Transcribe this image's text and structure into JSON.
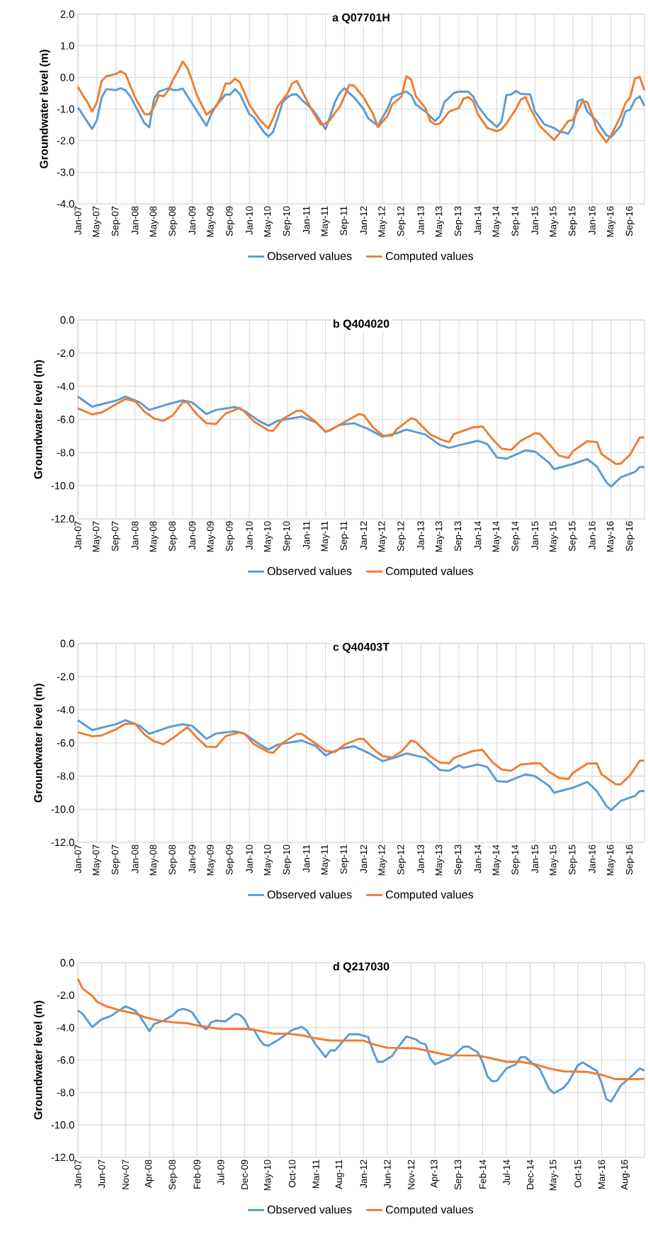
{
  "chart_data": [
    {
      "type": "line",
      "title": "a Q07701H",
      "ylabel": "Groundwater level (m)",
      "grid": true,
      "legend": "bottom",
      "xlim": [
        "2007-01",
        "2016-12"
      ],
      "xticks": [
        {
          "value": "2007-01",
          "label": "Jan-07"
        },
        {
          "value": "2007-05",
          "label": "May-07"
        },
        {
          "value": "2007-09",
          "label": "Sep-07"
        },
        {
          "value": "2008-01",
          "label": "Jan-08"
        },
        {
          "value": "2008-05",
          "label": "May-08"
        },
        {
          "value": "2008-09",
          "label": "Sep-08"
        },
        {
          "value": "2009-01",
          "label": "Jan-09"
        },
        {
          "value": "2009-05",
          "label": "May-09"
        },
        {
          "value": "2009-09",
          "label": "Sep-09"
        },
        {
          "value": "2010-01",
          "label": "Jan-10"
        },
        {
          "value": "2010-05",
          "label": "May-10"
        },
        {
          "value": "2010-09",
          "label": "Sep-10"
        },
        {
          "value": "2011-01",
          "label": "Jan-11"
        },
        {
          "value": "2011-05",
          "label": "May-11"
        },
        {
          "value": "2011-09",
          "label": "Sep-11"
        },
        {
          "value": "2012-01",
          "label": "Jan-12"
        },
        {
          "value": "2012-05",
          "label": "May-12"
        },
        {
          "value": "2012-09",
          "label": "Sep-12"
        },
        {
          "value": "2013-01",
          "label": "Jan-13"
        },
        {
          "value": "2013-05",
          "label": "May-13"
        },
        {
          "value": "2013-09",
          "label": "Sep-13"
        },
        {
          "value": "2014-01",
          "label": "Jan-14"
        },
        {
          "value": "2014-05",
          "label": "May-14"
        },
        {
          "value": "2014-09",
          "label": "Sep-14"
        },
        {
          "value": "2015-01",
          "label": "Jan-15"
        },
        {
          "value": "2015-05",
          "label": "May-15"
        },
        {
          "value": "2015-09",
          "label": "Sep-15"
        },
        {
          "value": "2016-01",
          "label": "Jan-16"
        },
        {
          "value": "2016-05",
          "label": "May-16"
        },
        {
          "value": "2016-09",
          "label": "Sep-16"
        }
      ],
      "ylim": [
        -4,
        2
      ],
      "yticks": [
        {
          "value": 2,
          "label": "2.0"
        },
        {
          "value": 1,
          "label": "1.0"
        },
        {
          "value": 0,
          "label": "0.0"
        },
        {
          "value": -1,
          "label": "-1.0"
        },
        {
          "value": -2,
          "label": "-2.0"
        },
        {
          "value": -3,
          "label": "-3.0"
        },
        {
          "value": -4,
          "label": "-4.0"
        }
      ],
      "series": [
        {
          "name": "Observed values",
          "color": "#5b9bd5",
          "x": [
            "2007-01",
            "2007-04",
            "2007-05",
            "2007-06",
            "2007-07",
            "2007-09",
            "2007-10",
            "2007-11",
            "2007-12",
            "2008-03",
            "2008-04",
            "2008-05",
            "2008-06",
            "2008-08",
            "2008-09",
            "2008-10",
            "2008-11",
            "2009-04",
            "2009-05",
            "2009-06",
            "2009-08",
            "2009-09",
            "2009-10",
            "2009-11",
            "2010-01",
            "2010-02",
            "2010-04",
            "2010-05",
            "2010-06",
            "2010-07",
            "2010-08",
            "2010-09",
            "2010-10",
            "2010-11",
            "2010-12",
            "2011-02",
            "2011-03",
            "2011-05",
            "2011-06",
            "2011-07",
            "2011-08",
            "2011-09",
            "2011-10",
            "2011-11",
            "2012-01",
            "2012-02",
            "2012-04",
            "2012-06",
            "2012-07",
            "2012-08",
            "2012-10",
            "2012-11",
            "2012-12",
            "2013-02",
            "2013-04",
            "2013-05",
            "2013-06",
            "2013-08",
            "2013-09",
            "2013-11",
            "2013-12",
            "2014-01",
            "2014-03",
            "2014-05",
            "2014-06",
            "2014-07",
            "2014-08",
            "2014-09",
            "2014-10",
            "2014-12",
            "2015-01",
            "2015-03",
            "2015-05",
            "2015-06",
            "2015-08",
            "2015-09",
            "2015-10",
            "2015-11",
            "2015-12",
            "2016-02",
            "2016-04",
            "2016-05",
            "2016-07",
            "2016-08",
            "2016-09",
            "2016-10",
            "2016-11",
            "2016-12"
          ],
          "values": [
            -0.95,
            -1.63,
            -1.35,
            -0.63,
            -0.37,
            -0.4,
            -0.34,
            -0.41,
            -0.6,
            -1.45,
            -1.58,
            -0.67,
            -0.45,
            -0.34,
            -0.4,
            -0.4,
            -0.35,
            -1.53,
            -1.16,
            -0.9,
            -0.54,
            -0.54,
            -0.37,
            -0.52,
            -1.16,
            -1.27,
            -1.72,
            -1.87,
            -1.72,
            -1.27,
            -0.78,
            -0.63,
            -0.54,
            -0.54,
            -0.71,
            -0.97,
            -1.16,
            -1.64,
            -1.23,
            -0.78,
            -0.49,
            -0.34,
            -0.5,
            -0.63,
            -1.0,
            -1.3,
            -1.53,
            -1.0,
            -0.63,
            -0.56,
            -0.45,
            -0.56,
            -0.86,
            -1.08,
            -1.38,
            -1.23,
            -0.78,
            -0.49,
            -0.45,
            -0.45,
            -0.6,
            -0.9,
            -1.3,
            -1.57,
            -1.38,
            -0.56,
            -0.54,
            -0.43,
            -0.52,
            -0.54,
            -1.08,
            -1.49,
            -1.6,
            -1.7,
            -1.78,
            -1.53,
            -0.75,
            -0.69,
            -1.08,
            -1.38,
            -1.83,
            -1.89,
            -1.53,
            -1.08,
            -1.02,
            -0.71,
            -0.6,
            -0.9
          ]
        },
        {
          "name": "Computed values",
          "color": "#ed7d31",
          "x": [
            "2007-01",
            "2007-02",
            "2007-03",
            "2007-04",
            "2007-05",
            "2007-06",
            "2007-07",
            "2007-08",
            "2007-09",
            "2007-10",
            "2007-11",
            "2008-01",
            "2008-03",
            "2008-04",
            "2008-05",
            "2008-06",
            "2008-07",
            "2008-08",
            "2008-09",
            "2008-10",
            "2008-11",
            "2008-12",
            "2009-01",
            "2009-02",
            "2009-04",
            "2009-06",
            "2009-07",
            "2009-08",
            "2009-09",
            "2009-10",
            "2009-11",
            "2009-12",
            "2010-01",
            "2010-03",
            "2010-05",
            "2010-06",
            "2010-07",
            "2010-09",
            "2010-10",
            "2010-11",
            "2010-12",
            "2011-02",
            "2011-04",
            "2011-05",
            "2011-06",
            "2011-07",
            "2011-08",
            "2011-09",
            "2011-10",
            "2011-11",
            "2012-01",
            "2012-03",
            "2012-04",
            "2012-06",
            "2012-07",
            "2012-09",
            "2012-10",
            "2012-11",
            "2012-12",
            "2013-02",
            "2013-03",
            "2013-04",
            "2013-05",
            "2013-07",
            "2013-09",
            "2013-10",
            "2013-11",
            "2013-12",
            "2014-01",
            "2014-03",
            "2014-05",
            "2014-06",
            "2014-07",
            "2014-09",
            "2014-10",
            "2014-11",
            "2014-12",
            "2015-02",
            "2015-04",
            "2015-05",
            "2015-06",
            "2015-08",
            "2015-09",
            "2015-11",
            "2015-12",
            "2016-01",
            "2016-02",
            "2016-04",
            "2016-05",
            "2016-07",
            "2016-08",
            "2016-09",
            "2016-10",
            "2016-11",
            "2016-12"
          ],
          "values": [
            -0.3,
            -0.56,
            -0.78,
            -1.08,
            -0.78,
            -0.11,
            0.04,
            0.07,
            0.11,
            0.2,
            0.11,
            -0.63,
            -1.16,
            -1.17,
            -0.93,
            -0.56,
            -0.6,
            -0.41,
            -0.07,
            0.19,
            0.5,
            0.3,
            -0.11,
            -0.56,
            -1.18,
            -0.93,
            -0.63,
            -0.2,
            -0.19,
            -0.04,
            -0.15,
            -0.49,
            -0.86,
            -1.3,
            -1.62,
            -1.3,
            -0.9,
            -0.52,
            -0.19,
            -0.11,
            -0.41,
            -1.0,
            -1.49,
            -1.46,
            -1.34,
            -1.12,
            -0.93,
            -0.6,
            -0.24,
            -0.26,
            -0.63,
            -1.16,
            -1.57,
            -1.23,
            -0.86,
            -0.6,
            0.04,
            -0.07,
            -0.6,
            -0.97,
            -1.38,
            -1.49,
            -1.46,
            -1.08,
            -0.97,
            -0.67,
            -0.62,
            -0.75,
            -1.16,
            -1.6,
            -1.7,
            -1.64,
            -1.46,
            -1.0,
            -0.71,
            -0.62,
            -0.97,
            -1.53,
            -1.83,
            -1.98,
            -1.79,
            -1.38,
            -1.34,
            -0.75,
            -0.78,
            -1.16,
            -1.64,
            -2.05,
            -1.83,
            -1.23,
            -0.82,
            -0.63,
            -0.04,
            0.02,
            -0.41
          ]
        }
      ]
    },
    {
      "type": "line",
      "title": "b Q404020",
      "ylabel": "Groundwater level (m)",
      "grid": true,
      "legend": "bottom",
      "xlim": [
        "2007-01",
        "2016-12"
      ],
      "xticks": [
        {
          "value": "2007-01",
          "label": "Jan-07"
        },
        {
          "value": "2007-05",
          "label": "May-07"
        },
        {
          "value": "2007-09",
          "label": "Sep-07"
        },
        {
          "value": "2008-01",
          "label": "Jan-08"
        },
        {
          "value": "2008-05",
          "label": "May-08"
        },
        {
          "value": "2008-09",
          "label": "Sep-08"
        },
        {
          "value": "2009-01",
          "label": "Jan-09"
        },
        {
          "value": "2009-05",
          "label": "May-09"
        },
        {
          "value": "2009-09",
          "label": "Sep-09"
        },
        {
          "value": "2010-01",
          "label": "Jan-10"
        },
        {
          "value": "2010-05",
          "label": "May-10"
        },
        {
          "value": "2010-09",
          "label": "Sep-10"
        },
        {
          "value": "2011-01",
          "label": "Jan-11"
        },
        {
          "value": "2011-05",
          "label": "May-11"
        },
        {
          "value": "2011-09",
          "label": "Sep-11"
        },
        {
          "value": "2012-01",
          "label": "Jan-12"
        },
        {
          "value": "2012-05",
          "label": "May-12"
        },
        {
          "value": "2012-09",
          "label": "Sep-12"
        },
        {
          "value": "2013-01",
          "label": "Jan-13"
        },
        {
          "value": "2013-05",
          "label": "May-13"
        },
        {
          "value": "2013-09",
          "label": "Sep-13"
        },
        {
          "value": "2014-01",
          "label": "Jan-14"
        },
        {
          "value": "2014-05",
          "label": "May-14"
        },
        {
          "value": "2014-09",
          "label": "Sep-14"
        },
        {
          "value": "2015-01",
          "label": "Jan-15"
        },
        {
          "value": "2015-05",
          "label": "May-15"
        },
        {
          "value": "2015-09",
          "label": "Sep-15"
        },
        {
          "value": "2016-01",
          "label": "Jan-16"
        },
        {
          "value": "2016-05",
          "label": "May-16"
        },
        {
          "value": "2016-09",
          "label": "Sep-16"
        }
      ],
      "ylim": [
        -12,
        0
      ],
      "yticks": [
        {
          "value": 0,
          "label": "0.0"
        },
        {
          "value": -2,
          "label": "-2.0"
        },
        {
          "value": -4,
          "label": "-4.0"
        },
        {
          "value": -6,
          "label": "-6.0"
        },
        {
          "value": -8,
          "label": "-8.0"
        },
        {
          "value": -10,
          "label": "-10.0"
        },
        {
          "value": -12,
          "label": "-12.0"
        }
      ],
      "series": [
        {
          "name": "Observed values",
          "color": "#5b9bd5",
          "x": [
            "2007-01",
            "2007-04",
            "2007-06",
            "2007-09",
            "2007-11",
            "2008-02",
            "2008-04",
            "2008-08",
            "2008-11",
            "2009-01",
            "2009-04",
            "2009-06",
            "2009-10",
            "2009-12",
            "2010-03",
            "2010-05",
            "2010-07",
            "2010-12",
            "2011-03",
            "2011-05",
            "2011-08",
            "2011-11",
            "2012-02",
            "2012-05",
            "2012-08",
            "2012-10",
            "2013-02",
            "2013-05",
            "2013-07",
            "2013-10",
            "2014-01",
            "2014-03",
            "2014-05",
            "2014-07",
            "2014-11",
            "2015-01",
            "2015-04",
            "2015-05",
            "2015-09",
            "2015-12",
            "2016-02",
            "2016-04",
            "2016-05",
            "2016-07",
            "2016-10",
            "2016-11",
            "2016-12"
          ],
          "values": [
            -4.62,
            -5.23,
            -5.08,
            -4.87,
            -4.62,
            -4.97,
            -5.43,
            -5.08,
            -4.85,
            -4.97,
            -5.68,
            -5.43,
            -5.25,
            -5.48,
            -6.08,
            -6.38,
            -6.08,
            -5.83,
            -6.18,
            -6.76,
            -6.33,
            -6.23,
            -6.58,
            -7.04,
            -6.83,
            -6.61,
            -6.91,
            -7.54,
            -7.71,
            -7.49,
            -7.29,
            -7.49,
            -8.29,
            -8.37,
            -7.86,
            -7.94,
            -8.62,
            -9.0,
            -8.69,
            -8.39,
            -8.84,
            -9.8,
            -10.05,
            -9.5,
            -9.17,
            -8.87,
            -8.87
          ]
        },
        {
          "name": "Computed values",
          "color": "#ed7d31",
          "x": [
            "2007-01",
            "2007-04",
            "2007-06",
            "2007-09",
            "2007-11",
            "2008-01",
            "2008-03",
            "2008-05",
            "2008-07",
            "2008-09",
            "2008-11",
            "2008-12",
            "2009-02",
            "2009-04",
            "2009-06",
            "2009-08",
            "2009-11",
            "2009-12",
            "2010-02",
            "2010-05",
            "2010-06",
            "2010-08",
            "2010-11",
            "2010-12",
            "2011-03",
            "2011-05",
            "2011-06",
            "2011-09",
            "2011-12",
            "2012-01",
            "2012-03",
            "2012-05",
            "2012-07",
            "2012-08",
            "2012-11",
            "2012-12",
            "2013-03",
            "2013-06",
            "2013-07",
            "2013-08",
            "2013-12",
            "2014-02",
            "2014-04",
            "2014-06",
            "2014-08",
            "2014-10",
            "2015-01",
            "2015-02",
            "2015-04",
            "2015-06",
            "2015-08",
            "2015-09",
            "2015-12",
            "2016-02",
            "2016-03",
            "2016-06",
            "2016-07",
            "2016-09",
            "2016-11",
            "2016-12"
          ],
          "values": [
            -5.33,
            -5.7,
            -5.58,
            -5.08,
            -4.77,
            -4.9,
            -5.53,
            -5.95,
            -6.08,
            -5.73,
            -4.97,
            -4.97,
            -5.7,
            -6.23,
            -6.28,
            -5.65,
            -5.3,
            -5.53,
            -6.13,
            -6.66,
            -6.68,
            -5.98,
            -5.48,
            -5.48,
            -6.16,
            -6.73,
            -6.66,
            -6.16,
            -5.68,
            -5.73,
            -6.48,
            -6.96,
            -6.98,
            -6.58,
            -5.93,
            -6.03,
            -6.91,
            -7.29,
            -7.36,
            -6.88,
            -6.48,
            -6.43,
            -7.16,
            -7.76,
            -7.84,
            -7.29,
            -6.83,
            -6.86,
            -7.49,
            -8.17,
            -8.32,
            -7.91,
            -7.31,
            -7.36,
            -8.09,
            -8.69,
            -8.67,
            -8.12,
            -7.09,
            -7.09
          ]
        }
      ]
    },
    {
      "type": "line",
      "title": "c Q40403T",
      "ylabel": "Groundwater level (m)",
      "grid": true,
      "legend": "bottom",
      "xlim": [
        "2007-01",
        "2016-12"
      ],
      "xticks": [
        {
          "value": "2007-01",
          "label": "Jan-07"
        },
        {
          "value": "2007-05",
          "label": "May-07"
        },
        {
          "value": "2007-09",
          "label": "Sep-07"
        },
        {
          "value": "2008-01",
          "label": "Jan-08"
        },
        {
          "value": "2008-05",
          "label": "May-08"
        },
        {
          "value": "2008-09",
          "label": "Sep-08"
        },
        {
          "value": "2009-01",
          "label": "Jan-09"
        },
        {
          "value": "2009-05",
          "label": "May-09"
        },
        {
          "value": "2009-09",
          "label": "Sep-09"
        },
        {
          "value": "2010-01",
          "label": "Jan-10"
        },
        {
          "value": "2010-05",
          "label": "May-10"
        },
        {
          "value": "2010-09",
          "label": "Sep-10"
        },
        {
          "value": "2011-01",
          "label": "Jan-11"
        },
        {
          "value": "2011-05",
          "label": "May-11"
        },
        {
          "value": "2011-09",
          "label": "Sep-11"
        },
        {
          "value": "2012-01",
          "label": "Jan-12"
        },
        {
          "value": "2012-05",
          "label": "May-12"
        },
        {
          "value": "2012-09",
          "label": "Sep-12"
        },
        {
          "value": "2013-01",
          "label": "Jan-13"
        },
        {
          "value": "2013-05",
          "label": "May-13"
        },
        {
          "value": "2013-09",
          "label": "Sep-13"
        },
        {
          "value": "2014-01",
          "label": "Jan-14"
        },
        {
          "value": "2014-05",
          "label": "May-14"
        },
        {
          "value": "2014-09",
          "label": "Sep-14"
        },
        {
          "value": "2015-01",
          "label": "Jan-15"
        },
        {
          "value": "2015-05",
          "label": "May-15"
        },
        {
          "value": "2015-09",
          "label": "Sep-15"
        },
        {
          "value": "2016-01",
          "label": "Jan-16"
        },
        {
          "value": "2016-05",
          "label": "May-16"
        },
        {
          "value": "2016-09",
          "label": "Sep-16"
        }
      ],
      "ylim": [
        -12,
        0
      ],
      "yticks": [
        {
          "value": 0,
          "label": "0.0"
        },
        {
          "value": -2,
          "label": "-2.0"
        },
        {
          "value": -4,
          "label": "-4.0"
        },
        {
          "value": -6,
          "label": "-6.0"
        },
        {
          "value": -8,
          "label": "-8.0"
        },
        {
          "value": -10,
          "label": "-10.0"
        },
        {
          "value": -12,
          "label": "-12.0"
        }
      ],
      "series": [
        {
          "name": "Observed values",
          "color": "#5b9bd5",
          "x": [
            "2007-01",
            "2007-04",
            "2007-09",
            "2007-11",
            "2008-02",
            "2008-04",
            "2008-08",
            "2008-11",
            "2009-01",
            "2009-04",
            "2009-06",
            "2009-10",
            "2009-12",
            "2010-03",
            "2010-05",
            "2010-07",
            "2010-12",
            "2011-03",
            "2011-05",
            "2011-08",
            "2011-11",
            "2012-02",
            "2012-05",
            "2012-08",
            "2012-10",
            "2013-02",
            "2013-05",
            "2013-07",
            "2013-09",
            "2013-10",
            "2014-01",
            "2014-03",
            "2014-05",
            "2014-07",
            "2014-11",
            "2015-01",
            "2015-04",
            "2015-05",
            "2015-09",
            "2015-12",
            "2016-02",
            "2016-04",
            "2016-05",
            "2016-07",
            "2016-10",
            "2016-11",
            "2016-12"
          ],
          "values": [
            -4.63,
            -5.22,
            -4.87,
            -4.63,
            -4.97,
            -5.45,
            -5.05,
            -4.87,
            -4.97,
            -5.75,
            -5.43,
            -5.3,
            -5.45,
            -6.05,
            -6.4,
            -6.1,
            -5.85,
            -6.2,
            -6.75,
            -6.35,
            -6.2,
            -6.6,
            -7.1,
            -6.85,
            -6.63,
            -6.9,
            -7.63,
            -7.68,
            -7.35,
            -7.5,
            -7.3,
            -7.45,
            -8.3,
            -8.35,
            -7.9,
            -8.0,
            -8.6,
            -9.0,
            -8.7,
            -8.35,
            -8.9,
            -9.8,
            -10.05,
            -9.5,
            -9.2,
            -8.9,
            -8.9
          ]
        },
        {
          "name": "Computed values",
          "color": "#ed7d31",
          "x": [
            "2007-01",
            "2007-04",
            "2007-06",
            "2007-09",
            "2007-11",
            "2008-01",
            "2008-03",
            "2008-05",
            "2008-07",
            "2008-09",
            "2008-12",
            "2009-02",
            "2009-04",
            "2009-06",
            "2009-08",
            "2009-11",
            "2009-12",
            "2010-02",
            "2010-05",
            "2010-06",
            "2010-08",
            "2010-11",
            "2010-12",
            "2011-03",
            "2011-05",
            "2011-07",
            "2011-09",
            "2011-12",
            "2012-01",
            "2012-03",
            "2012-05",
            "2012-07",
            "2012-09",
            "2012-11",
            "2012-12",
            "2013-03",
            "2013-05",
            "2013-07",
            "2013-08",
            "2013-12",
            "2014-02",
            "2014-04",
            "2014-06",
            "2014-08",
            "2014-10",
            "2015-01",
            "2015-02",
            "2015-04",
            "2015-06",
            "2015-08",
            "2015-09",
            "2015-12",
            "2016-02",
            "2016-03",
            "2016-06",
            "2016-07",
            "2016-09",
            "2016-11",
            "2016-12"
          ],
          "values": [
            -5.35,
            -5.6,
            -5.55,
            -5.18,
            -4.85,
            -4.83,
            -5.5,
            -5.9,
            -6.08,
            -5.7,
            -5.05,
            -5.68,
            -6.23,
            -6.25,
            -5.6,
            -5.35,
            -5.45,
            -6.08,
            -6.55,
            -6.6,
            -6.0,
            -5.45,
            -5.45,
            -6.05,
            -6.48,
            -6.55,
            -6.1,
            -5.75,
            -5.75,
            -6.35,
            -6.8,
            -6.88,
            -6.5,
            -5.85,
            -5.95,
            -6.8,
            -7.18,
            -7.23,
            -6.9,
            -6.48,
            -6.43,
            -7.15,
            -7.6,
            -7.68,
            -7.3,
            -7.23,
            -7.23,
            -7.75,
            -8.1,
            -8.18,
            -7.8,
            -7.25,
            -7.23,
            -7.9,
            -8.5,
            -8.5,
            -7.95,
            -7.08,
            -7.05
          ]
        }
      ]
    },
    {
      "type": "line",
      "title": "d Q217030",
      "ylabel": "Groundwater level (m)",
      "grid": true,
      "legend": "bottom",
      "xlim": [
        "2007-01",
        "2016-12"
      ],
      "xticks": [
        {
          "value": "2007-01",
          "label": "Jan-07"
        },
        {
          "value": "2007-06",
          "label": "Jun-07"
        },
        {
          "value": "2007-11",
          "label": "Nov-07"
        },
        {
          "value": "2008-04",
          "label": "Apr-08"
        },
        {
          "value": "2008-09",
          "label": "Sep-08"
        },
        {
          "value": "2009-02",
          "label": "Feb-09"
        },
        {
          "value": "2009-07",
          "label": "Jul-09"
        },
        {
          "value": "2009-12",
          "label": "Dec-09"
        },
        {
          "value": "2010-05",
          "label": "May-10"
        },
        {
          "value": "2010-10",
          "label": "Oct-10"
        },
        {
          "value": "2011-03",
          "label": "Mar-11"
        },
        {
          "value": "2011-08",
          "label": "Aug-11"
        },
        {
          "value": "2012-01",
          "label": "Jan-12"
        },
        {
          "value": "2012-06",
          "label": "Jun-12"
        },
        {
          "value": "2012-11",
          "label": "Nov-12"
        },
        {
          "value": "2013-04",
          "label": "Apr-13"
        },
        {
          "value": "2013-09",
          "label": "Sep-13"
        },
        {
          "value": "2014-02",
          "label": "Feb-14"
        },
        {
          "value": "2014-07",
          "label": "Jul-14"
        },
        {
          "value": "2014-12",
          "label": "Dec-14"
        },
        {
          "value": "2015-05",
          "label": "May-15"
        },
        {
          "value": "2015-10",
          "label": "Oct-15"
        },
        {
          "value": "2016-03",
          "label": "Mar-16"
        },
        {
          "value": "2016-08",
          "label": "Aug-16"
        }
      ],
      "ylim": [
        -12,
        0
      ],
      "yticks": [
        {
          "value": 0,
          "label": "0.0"
        },
        {
          "value": -2,
          "label": "-2.0"
        },
        {
          "value": -4,
          "label": "-4.0"
        },
        {
          "value": -6,
          "label": "-6.0"
        },
        {
          "value": -8,
          "label": "-8.0"
        },
        {
          "value": -10,
          "label": "-10.0"
        },
        {
          "value": -12,
          "label": "-12.0"
        }
      ],
      "series": [
        {
          "name": "Observed values",
          "color": "#5b9bd5",
          "x": [
            "2007-01",
            "2007-02",
            "2007-04",
            "2007-06",
            "2007-08",
            "2007-09",
            "2007-11",
            "2008-01",
            "2008-02",
            "2008-04",
            "2008-05",
            "2008-07",
            "2008-09",
            "2008-10",
            "2008-11",
            "2008-12",
            "2009-01",
            "2009-03",
            "2009-04",
            "2009-05",
            "2009-06",
            "2009-08",
            "2009-10",
            "2009-11",
            "2009-12",
            "2010-01",
            "2010-02",
            "2010-03",
            "2010-04",
            "2010-05",
            "2010-07",
            "2010-10",
            "2010-12",
            "2011-01",
            "2011-03",
            "2011-05",
            "2011-06",
            "2011-07",
            "2011-09",
            "2011-10",
            "2011-12",
            "2012-02",
            "2012-03",
            "2012-04",
            "2012-05",
            "2012-07",
            "2012-08",
            "2012-10",
            "2012-12",
            "2013-01",
            "2013-02",
            "2013-03",
            "2013-04",
            "2013-07",
            "2013-08",
            "2013-10",
            "2013-11",
            "2014-01",
            "2014-02",
            "2014-03",
            "2014-04",
            "2014-05",
            "2014-07",
            "2014-09",
            "2014-10",
            "2014-11",
            "2014-12",
            "2015-02",
            "2015-04",
            "2015-05",
            "2015-07",
            "2015-08",
            "2015-10",
            "2015-11",
            "2016-02",
            "2016-03",
            "2016-04",
            "2016-05",
            "2016-07",
            "2016-09",
            "2016-10",
            "2016-11",
            "2016-12"
          ],
          "values": [
            -2.94,
            -3.16,
            -3.96,
            -3.49,
            -3.28,
            -3.06,
            -2.69,
            -2.94,
            -3.28,
            -4.22,
            -3.78,
            -3.57,
            -3.23,
            -2.94,
            -2.84,
            -2.91,
            -3.06,
            -3.93,
            -4.1,
            -3.67,
            -3.57,
            -3.61,
            -3.16,
            -3.2,
            -3.49,
            -4.1,
            -4.15,
            -4.66,
            -5.05,
            -5.12,
            -4.77,
            -4.15,
            -3.96,
            -4.15,
            -5.06,
            -5.82,
            -5.41,
            -5.41,
            -4.73,
            -4.4,
            -4.41,
            -4.59,
            -5.46,
            -6.11,
            -6.11,
            -5.75,
            -5.31,
            -4.54,
            -4.73,
            -4.95,
            -5.02,
            -5.9,
            -6.26,
            -5.9,
            -5.71,
            -5.17,
            -5.17,
            -5.53,
            -6.11,
            -6.99,
            -7.31,
            -7.28,
            -6.52,
            -6.26,
            -5.82,
            -5.82,
            -6.09,
            -6.55,
            -7.79,
            -8.04,
            -7.71,
            -7.37,
            -6.33,
            -6.14,
            -6.67,
            -7.42,
            -8.41,
            -8.56,
            -7.57,
            -7.06,
            -6.8,
            -6.52,
            -6.65
          ]
        },
        {
          "name": "Computed values",
          "color": "#ed7d31",
          "x": [
            "2007-01",
            "2007-02",
            "2007-04",
            "2007-05",
            "2007-07",
            "2007-10",
            "2008-01",
            "2008-03",
            "2008-06",
            "2008-09",
            "2008-12",
            "2009-02",
            "2009-05",
            "2009-07",
            "2009-10",
            "2010-01",
            "2010-03",
            "2010-06",
            "2010-09",
            "2010-12",
            "2011-03",
            "2011-06",
            "2011-11",
            "2012-01",
            "2012-03",
            "2012-06",
            "2012-12",
            "2013-04",
            "2013-07",
            "2014-01",
            "2014-04",
            "2014-07",
            "2014-10",
            "2015-01",
            "2015-04",
            "2015-07",
            "2015-12",
            "2016-03",
            "2016-06",
            "2016-09",
            "2016-12"
          ],
          "values": [
            -0.99,
            -1.6,
            -2.04,
            -2.4,
            -2.69,
            -2.95,
            -3.13,
            -3.35,
            -3.57,
            -3.67,
            -3.73,
            -3.86,
            -4.0,
            -4.08,
            -4.09,
            -4.08,
            -4.19,
            -4.37,
            -4.37,
            -4.47,
            -4.66,
            -4.8,
            -4.8,
            -4.8,
            -5.02,
            -5.24,
            -5.28,
            -5.53,
            -5.71,
            -5.72,
            -5.9,
            -6.11,
            -6.11,
            -6.26,
            -6.52,
            -6.7,
            -6.73,
            -6.91,
            -7.18,
            -7.18,
            -7.16
          ]
        }
      ]
    }
  ]
}
